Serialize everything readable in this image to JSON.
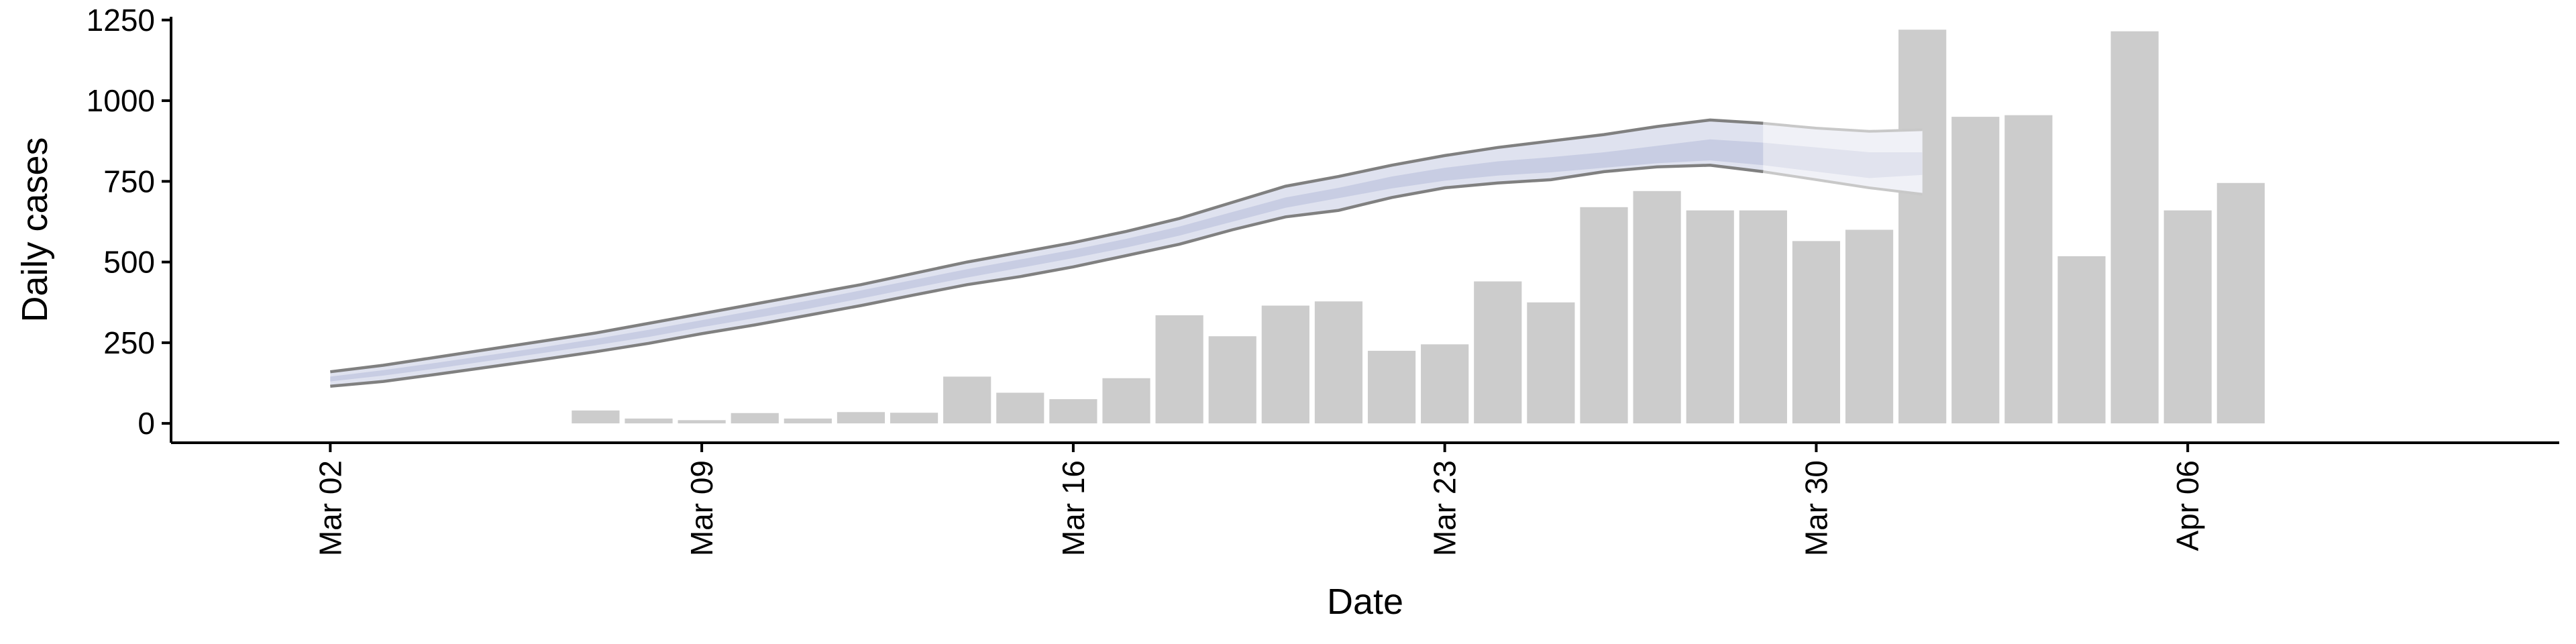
{
  "chart_data": {
    "type": "bar",
    "title": "",
    "xlabel": "Date",
    "ylabel": "Daily cases",
    "ylim": [
      -60,
      1260
    ],
    "yticks": [
      0,
      250,
      500,
      750,
      1000,
      1250
    ],
    "xlim": [
      "2020-02-28",
      "2020-04-13"
    ],
    "xticks": [
      {
        "date": "2020-03-02",
        "label": "Mar 02"
      },
      {
        "date": "2020-03-09",
        "label": "Mar 09"
      },
      {
        "date": "2020-03-16",
        "label": "Mar 16"
      },
      {
        "date": "2020-03-23",
        "label": "Mar 23"
      },
      {
        "date": "2020-03-30",
        "label": "Mar 30"
      },
      {
        "date": "2020-04-06",
        "label": "Apr 06"
      }
    ],
    "grid": false,
    "legend": "none",
    "colors": {
      "bar": "#cccccc",
      "ribbon_outer": "#dcdfed",
      "ribbon_inner": "#c8cde3",
      "band_edge": "#808080",
      "projection_outer": "#f0f1f7",
      "projection_inner": "#e1e3ee"
    },
    "series": [
      {
        "type": "bar",
        "x": [
          "2020-03-07",
          "2020-03-08",
          "2020-03-09",
          "2020-03-10",
          "2020-03-11",
          "2020-03-12",
          "2020-03-13",
          "2020-03-14",
          "2020-03-15",
          "2020-03-16",
          "2020-03-17",
          "2020-03-18",
          "2020-03-19",
          "2020-03-20",
          "2020-03-21",
          "2020-03-22",
          "2020-03-23",
          "2020-03-24",
          "2020-03-25",
          "2020-03-26",
          "2020-03-27",
          "2020-03-28",
          "2020-03-29",
          "2020-03-30",
          "2020-03-31",
          "2020-04-01",
          "2020-04-02",
          "2020-04-03",
          "2020-04-04",
          "2020-04-05",
          "2020-04-06",
          "2020-04-07"
        ],
        "values": [
          40,
          15,
          10,
          32,
          15,
          35,
          33,
          145,
          95,
          75,
          140,
          335,
          270,
          365,
          378,
          225,
          245,
          440,
          375,
          670,
          720,
          660,
          660,
          565,
          600,
          1220,
          950,
          955,
          518,
          1215,
          660,
          745
        ]
      },
      {
        "type": "band",
        "x": [
          "2020-03-02",
          "2020-03-03",
          "2020-03-04",
          "2020-03-05",
          "2020-03-06",
          "2020-03-07",
          "2020-03-08",
          "2020-03-09",
          "2020-03-10",
          "2020-03-11",
          "2020-03-12",
          "2020-03-13",
          "2020-03-14",
          "2020-03-15",
          "2020-03-16",
          "2020-03-17",
          "2020-03-18",
          "2020-03-19",
          "2020-03-20",
          "2020-03-21",
          "2020-03-22",
          "2020-03-23",
          "2020-03-24",
          "2020-03-25",
          "2020-03-26",
          "2020-03-27",
          "2020-03-28",
          "2020-03-29"
        ],
        "upper": [
          160,
          180,
          205,
          230,
          255,
          280,
          310,
          340,
          370,
          400,
          430,
          465,
          500,
          530,
          560,
          595,
          635,
          685,
          735,
          765,
          800,
          830,
          855,
          875,
          895,
          920,
          940,
          930
        ],
        "upper_inner": [
          145,
          165,
          188,
          212,
          236,
          262,
          290,
          320,
          350,
          380,
          412,
          445,
          478,
          508,
          538,
          572,
          610,
          655,
          700,
          730,
          765,
          792,
          812,
          825,
          840,
          860,
          880,
          870
        ],
        "lower_inner": [
          130,
          148,
          170,
          194,
          218,
          242,
          268,
          298,
          326,
          355,
          387,
          420,
          452,
          482,
          512,
          545,
          582,
          625,
          668,
          698,
          728,
          752,
          768,
          778,
          792,
          806,
          815,
          800
        ],
        "lower": [
          115,
          130,
          152,
          175,
          198,
          222,
          248,
          278,
          305,
          335,
          365,
          398,
          430,
          455,
          485,
          520,
          555,
          600,
          640,
          660,
          700,
          730,
          745,
          755,
          780,
          795,
          800,
          780
        ]
      },
      {
        "type": "projection",
        "x": [
          "2020-03-29",
          "2020-03-30",
          "2020-03-31",
          "2020-04-01"
        ],
        "upper": [
          930,
          915,
          905,
          910
        ],
        "upper_inner": [
          870,
          855,
          840,
          840
        ],
        "lower_inner": [
          800,
          780,
          760,
          770
        ],
        "lower": [
          780,
          755,
          730,
          710
        ]
      }
    ]
  }
}
